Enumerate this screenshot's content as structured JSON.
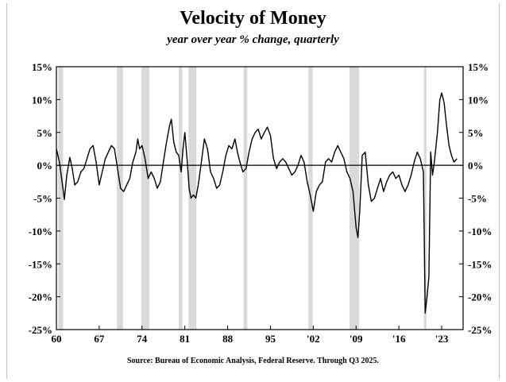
{
  "chart_data": {
    "type": "line",
    "title": "Velocity of Money",
    "subtitle": "year over year % change, quarterly",
    "source": "Source:  Bureau of Economic Analysis, Federal Reserve. Through Q3 2025.",
    "xlabel": "",
    "ylabel": "",
    "xlim": [
      1960,
      2026.5
    ],
    "ylim": [
      -25,
      15
    ],
    "x_ticks": [
      1960,
      1967,
      1974,
      1981,
      1988,
      1995,
      2002,
      2009,
      2016,
      2023
    ],
    "x_tick_labels": [
      "60",
      "67",
      "74",
      "81",
      "88",
      "95",
      "'02",
      "'09",
      "'16",
      "'23"
    ],
    "y_ticks": [
      15,
      10,
      5,
      0,
      -5,
      -10,
      -15,
      -20,
      -25
    ],
    "y_tick_labels": [
      "15%",
      "10%",
      "5%",
      "0%",
      "-5%",
      "-10%",
      "-15%",
      "-20%",
      "-25%"
    ],
    "recessions": [
      [
        1960.3,
        1961.1
      ],
      [
        1969.9,
        1970.9
      ],
      [
        1973.9,
        1975.2
      ],
      [
        1980.0,
        1980.6
      ],
      [
        1981.6,
        1982.9
      ],
      [
        1990.6,
        1991.2
      ],
      [
        2001.2,
        2001.9
      ],
      [
        2007.9,
        2009.5
      ],
      [
        2020.1,
        2020.5
      ]
    ],
    "legend": "none",
    "grid": false,
    "series": [
      {
        "name": "Velocity of Money (YoY % change)",
        "color": "#000000",
        "points": [
          [
            1960.0,
            2.5
          ],
          [
            1960.5,
            0.5
          ],
          [
            1961.0,
            -3.0
          ],
          [
            1961.3,
            -5.2
          ],
          [
            1961.7,
            -1.5
          ],
          [
            1962.2,
            1.2
          ],
          [
            1962.6,
            -0.5
          ],
          [
            1963.0,
            -3.0
          ],
          [
            1963.5,
            -2.5
          ],
          [
            1964.0,
            -1.0
          ],
          [
            1964.5,
            -0.5
          ],
          [
            1965.0,
            1.0
          ],
          [
            1965.5,
            2.5
          ],
          [
            1966.0,
            3.0
          ],
          [
            1966.5,
            0.5
          ],
          [
            1967.0,
            -3.0
          ],
          [
            1967.5,
            -1.0
          ],
          [
            1968.0,
            1.0
          ],
          [
            1968.5,
            2.0
          ],
          [
            1969.0,
            3.0
          ],
          [
            1969.5,
            2.5
          ],
          [
            1970.0,
            -0.5
          ],
          [
            1970.5,
            -3.5
          ],
          [
            1971.0,
            -4.0
          ],
          [
            1971.5,
            -3.0
          ],
          [
            1972.0,
            -2.0
          ],
          [
            1972.5,
            0.5
          ],
          [
            1973.0,
            2.0
          ],
          [
            1973.3,
            4.0
          ],
          [
            1973.6,
            2.5
          ],
          [
            1974.0,
            3.0
          ],
          [
            1974.5,
            1.0
          ],
          [
            1975.0,
            -2.0
          ],
          [
            1975.5,
            -1.0
          ],
          [
            1976.0,
            -2.0
          ],
          [
            1976.5,
            -3.5
          ],
          [
            1977.0,
            -2.5
          ],
          [
            1977.5,
            0.5
          ],
          [
            1978.0,
            3.5
          ],
          [
            1978.5,
            6.0
          ],
          [
            1978.8,
            7.0
          ],
          [
            1979.2,
            3.5
          ],
          [
            1979.6,
            2.0
          ],
          [
            1980.0,
            1.5
          ],
          [
            1980.4,
            -1.0
          ],
          [
            1980.7,
            2.5
          ],
          [
            1981.0,
            5.0
          ],
          [
            1981.4,
            0.5
          ],
          [
            1981.7,
            -3.5
          ],
          [
            1982.0,
            -5.0
          ],
          [
            1982.4,
            -4.5
          ],
          [
            1982.8,
            -5.0
          ],
          [
            1983.2,
            -3.0
          ],
          [
            1983.7,
            0.5
          ],
          [
            1984.2,
            4.0
          ],
          [
            1984.7,
            2.5
          ],
          [
            1985.2,
            -1.0
          ],
          [
            1985.7,
            -2.0
          ],
          [
            1986.2,
            -3.5
          ],
          [
            1986.7,
            -3.0
          ],
          [
            1987.2,
            -1.0
          ],
          [
            1987.7,
            1.5
          ],
          [
            1988.2,
            3.0
          ],
          [
            1988.7,
            2.5
          ],
          [
            1989.2,
            4.0
          ],
          [
            1989.6,
            2.0
          ],
          [
            1990.0,
            0.5
          ],
          [
            1990.5,
            -1.0
          ],
          [
            1991.0,
            -0.5
          ],
          [
            1991.5,
            2.0
          ],
          [
            1992.0,
            4.0
          ],
          [
            1992.5,
            5.0
          ],
          [
            1993.0,
            5.5
          ],
          [
            1993.5,
            4.0
          ],
          [
            1994.0,
            5.0
          ],
          [
            1994.5,
            5.8
          ],
          [
            1995.0,
            4.5
          ],
          [
            1995.5,
            1.0
          ],
          [
            1996.0,
            -0.5
          ],
          [
            1996.5,
            0.5
          ],
          [
            1997.0,
            1.0
          ],
          [
            1997.5,
            0.5
          ],
          [
            1998.0,
            -0.5
          ],
          [
            1998.5,
            -1.5
          ],
          [
            1999.0,
            -1.0
          ],
          [
            1999.5,
            0.0
          ],
          [
            2000.0,
            1.5
          ],
          [
            2000.5,
            0.5
          ],
          [
            2001.0,
            -2.5
          ],
          [
            2001.5,
            -4.5
          ],
          [
            2002.0,
            -7.0
          ],
          [
            2002.5,
            -4.0
          ],
          [
            2003.0,
            -3.0
          ],
          [
            2003.5,
            -2.5
          ],
          [
            2004.0,
            0.5
          ],
          [
            2004.5,
            1.0
          ],
          [
            2005.0,
            0.5
          ],
          [
            2005.5,
            2.0
          ],
          [
            2006.0,
            3.0
          ],
          [
            2006.5,
            2.0
          ],
          [
            2007.0,
            1.0
          ],
          [
            2007.5,
            -1.0
          ],
          [
            2008.0,
            -2.0
          ],
          [
            2008.5,
            -4.0
          ],
          [
            2009.0,
            -9.5
          ],
          [
            2009.3,
            -11.0
          ],
          [
            2009.6,
            -7.0
          ],
          [
            2010.0,
            1.5
          ],
          [
            2010.5,
            2.0
          ],
          [
            2011.0,
            -3.0
          ],
          [
            2011.5,
            -5.5
          ],
          [
            2012.0,
            -5.0
          ],
          [
            2012.5,
            -3.5
          ],
          [
            2013.0,
            -2.0
          ],
          [
            2013.5,
            -4.0
          ],
          [
            2014.0,
            -2.5
          ],
          [
            2014.5,
            -1.5
          ],
          [
            2015.0,
            -1.0
          ],
          [
            2015.5,
            -2.0
          ],
          [
            2016.0,
            -1.5
          ],
          [
            2016.5,
            -3.0
          ],
          [
            2017.0,
            -4.0
          ],
          [
            2017.5,
            -3.0
          ],
          [
            2018.0,
            -1.5
          ],
          [
            2018.5,
            0.5
          ],
          [
            2019.0,
            2.0
          ],
          [
            2019.5,
            1.0
          ],
          [
            2020.0,
            -1.0
          ],
          [
            2020.3,
            -22.5
          ],
          [
            2020.6,
            -20.0
          ],
          [
            2020.9,
            -17.0
          ],
          [
            2021.2,
            2.0
          ],
          [
            2021.5,
            -1.5
          ],
          [
            2021.8,
            0.5
          ],
          [
            2022.3,
            5.0
          ],
          [
            2022.7,
            10.0
          ],
          [
            2023.0,
            11.0
          ],
          [
            2023.4,
            9.5
          ],
          [
            2023.8,
            6.0
          ],
          [
            2024.2,
            3.0
          ],
          [
            2024.6,
            1.5
          ],
          [
            2025.0,
            0.5
          ],
          [
            2025.5,
            1.0
          ]
        ]
      }
    ]
  }
}
